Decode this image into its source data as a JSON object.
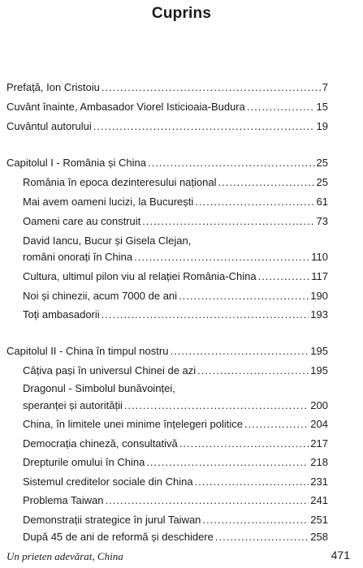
{
  "title": "Cuprins",
  "front": [
    {
      "text": "Prefață, Ion Cristoiu",
      "page": "7"
    },
    {
      "text": "Cuvânt înainte, Ambasador Viorel Isticioaia-Budura",
      "page": "15"
    },
    {
      "text": "Cuvântul autorului",
      "page": "19"
    }
  ],
  "chapter1": {
    "heading": {
      "text": "Capitolul I - România și China",
      "page": "25"
    },
    "items": [
      {
        "text": "România în epoca dezinteresului național",
        "page": "25"
      },
      {
        "text": "Mai avem oameni lucizi, la București",
        "page": "61"
      },
      {
        "text": "Oameni care au construit",
        "page": "73"
      },
      {
        "line1": "David Iancu, Bucur și Gisela Clejan,",
        "text": "români onorați în China",
        "page": "110"
      },
      {
        "text": "Cultura, ultimul pilon viu al relației România-China",
        "page": "117"
      },
      {
        "text": "Noi și chinezii, acum 7000 de ani",
        "page": "190"
      },
      {
        "text": "Toți ambasadorii",
        "page": "193"
      }
    ]
  },
  "chapter2": {
    "heading": {
      "text": "Capitolul II - China în timpul nostru",
      "page": "195"
    },
    "items": [
      {
        "text": "Câțiva pași în universul Chinei de azi",
        "page": "195"
      },
      {
        "line1": "Dragonul - Simbolul bunăvoinței,",
        "text": "speranței și autorității",
        "page": "200"
      },
      {
        "text": "China, în limitele unei minime înțelegeri politice",
        "page": "204"
      },
      {
        "text": "Democrația chineză, consultativă",
        "page": "217"
      },
      {
        "text": "Drepturile omului în China",
        "page": "218"
      },
      {
        "text": "Sistemul creditelor sociale din China",
        "page": "231"
      },
      {
        "text": "Problema Taiwan",
        "page": "241"
      },
      {
        "text": "Demonstrații strategice în jurul Taiwan",
        "page": "251"
      },
      {
        "text": "După 45 de ani de reformă și deschidere",
        "page": "258"
      }
    ]
  },
  "footer": {
    "book_title": "Un prieten adevărat, China",
    "page_number": "471"
  }
}
